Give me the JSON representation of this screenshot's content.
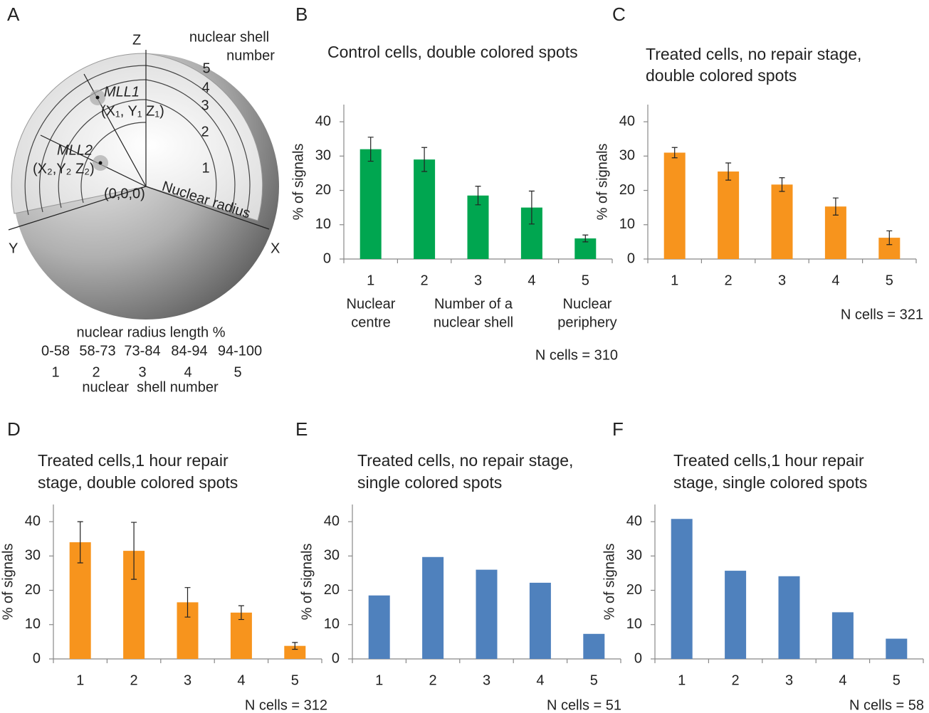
{
  "diagram": {
    "panel": "A",
    "z_axis": "Z",
    "x_axis": "X",
    "y_axis": "Y",
    "shell_caption": [
      "nuclear shell",
      "number"
    ],
    "shell_numbers": [
      "5",
      "4",
      "3",
      "2",
      "1"
    ],
    "spots": [
      {
        "name": "MLL1",
        "coords": "(X₁, Y₁ Z₁)"
      },
      {
        "name": "MLL2",
        "coords": "(X₂,Y₂ Z₂)"
      }
    ],
    "origin": "(0,0,0)",
    "radius_label": "Nuclear radius",
    "table_title": "nuclear radius length %",
    "ranges": [
      "0-58",
      "58-73",
      "73-84",
      "84-94",
      "94-100"
    ],
    "shells": [
      "1",
      "2",
      "3",
      "4",
      "5"
    ],
    "table_footer": "nuclear  shell number"
  },
  "chart_data": [
    {
      "type": "bar",
      "panel": "B",
      "title": [
        "Control cells, double colored spots"
      ],
      "ylabel": "% of signals",
      "categories": [
        "1",
        "2",
        "3",
        "4",
        "5"
      ],
      "values": [
        32,
        29,
        18.5,
        15,
        6
      ],
      "errors": [
        3.5,
        3.5,
        2.7,
        4.8,
        1
      ],
      "color": "#00a650",
      "ylim": [
        0,
        45
      ],
      "yticks": [
        0,
        10,
        20,
        30,
        40
      ],
      "category_notes": [
        [
          "Nuclear",
          "centre"
        ],
        [
          "Number of a",
          "nuclear shell"
        ],
        [
          "Nuclear",
          "periphery"
        ]
      ],
      "note": "N cells = 310"
    },
    {
      "type": "bar",
      "panel": "C",
      "title": [
        "Treated cells, no repair stage,",
        "double colored spots"
      ],
      "ylabel": "% of signals",
      "categories": [
        "1",
        "2",
        "3",
        "4",
        "5"
      ],
      "values": [
        31,
        25.5,
        21.7,
        15.3,
        6.2
      ],
      "errors": [
        1.5,
        2.5,
        2,
        2.5,
        2
      ],
      "color": "#f7941d",
      "ylim": [
        0,
        45
      ],
      "yticks": [
        0,
        10,
        20,
        30,
        40
      ],
      "note": "N cells = 321"
    },
    {
      "type": "bar",
      "panel": "D",
      "title": [
        "Treated cells,1 hour repair",
        "stage, double colored spots"
      ],
      "ylabel": "% of signals",
      "categories": [
        "1",
        "2",
        "3",
        "4",
        "5"
      ],
      "values": [
        34,
        31.5,
        16.5,
        13.5,
        3.8
      ],
      "errors": [
        6,
        8.3,
        4.3,
        2,
        1
      ],
      "color": "#f7941d",
      "ylim": [
        0,
        45
      ],
      "yticks": [
        0,
        10,
        20,
        30,
        40
      ],
      "note": "N cells = 312"
    },
    {
      "type": "bar",
      "panel": "E",
      "title": [
        "Treated cells, no repair stage,",
        "single colored spots"
      ],
      "ylabel": "% of signals",
      "categories": [
        "1",
        "2",
        "3",
        "4",
        "5"
      ],
      "values": [
        18.5,
        29.7,
        26,
        22.2,
        7.3
      ],
      "color": "#4f81bd",
      "ylim": [
        0,
        45
      ],
      "yticks": [
        0,
        10,
        20,
        30,
        40
      ],
      "note": "N cells = 51"
    },
    {
      "type": "bar",
      "panel": "F",
      "title": [
        "Treated cells,1 hour repair",
        "stage, single colored spots"
      ],
      "ylabel": "% of signals",
      "categories": [
        "1",
        "2",
        "3",
        "4",
        "5"
      ],
      "values": [
        40.8,
        25.7,
        24.1,
        13.6,
        5.9
      ],
      "color": "#4f81bd",
      "ylim": [
        0,
        45
      ],
      "yticks": [
        0,
        10,
        20,
        30,
        40
      ],
      "note": "N cells = 58"
    }
  ]
}
